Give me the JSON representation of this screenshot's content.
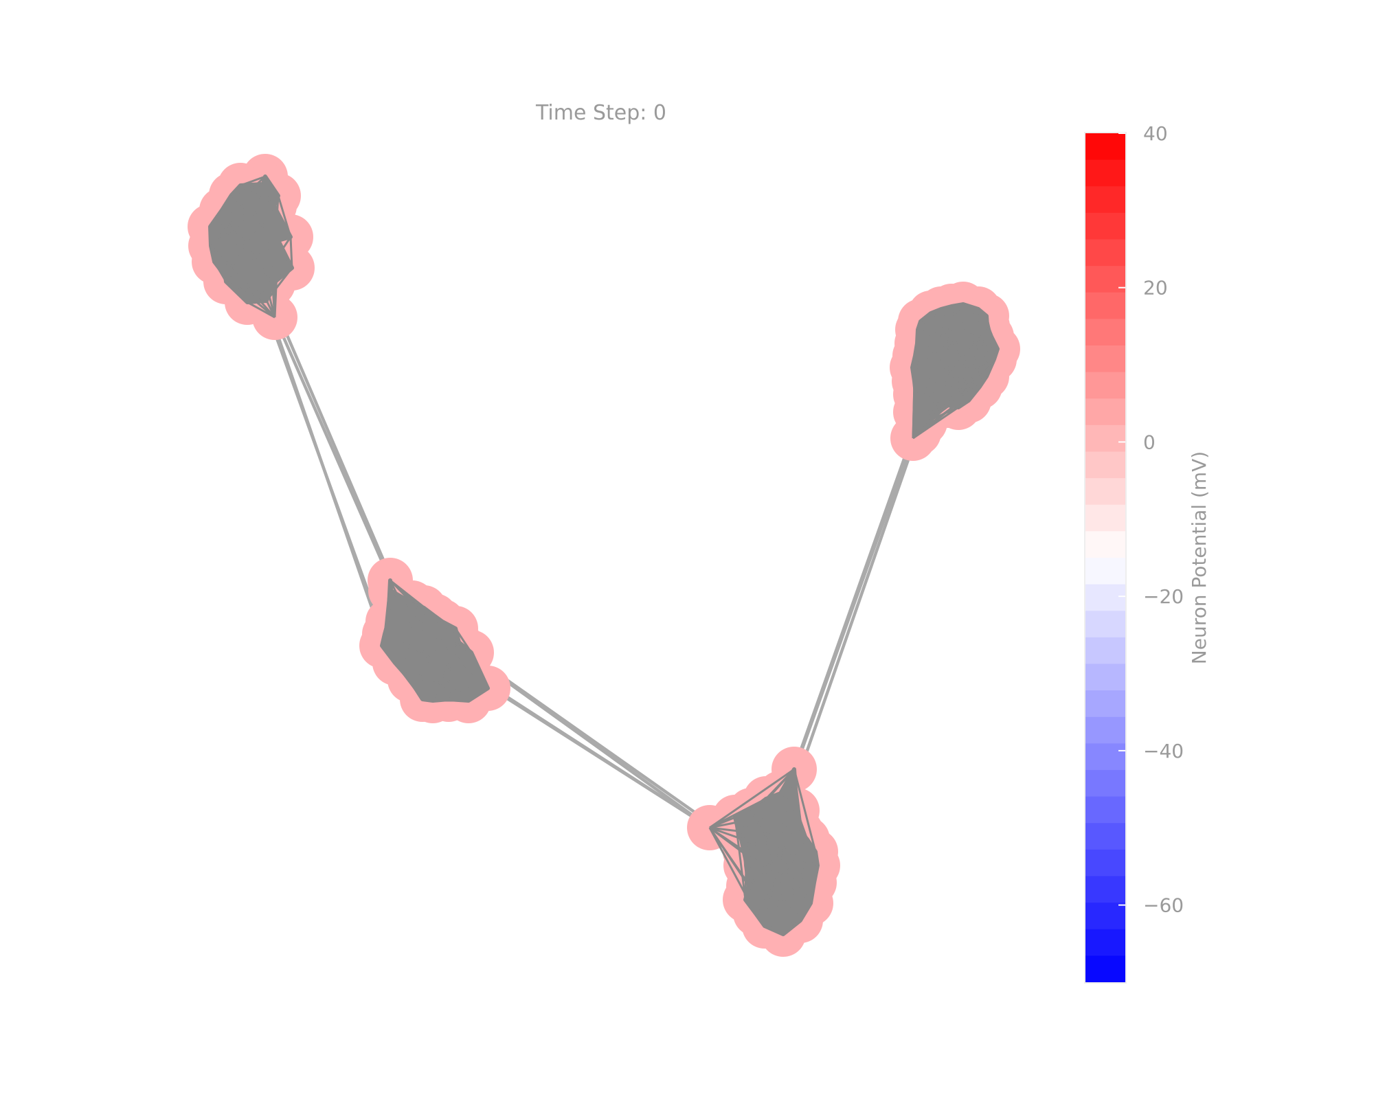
{
  "title": "Time Step: 0",
  "colorbar": {
    "label": "Neuron Potential (mV)",
    "range": [
      -70,
      40
    ],
    "ticks": [
      {
        "value": 40,
        "label": "40"
      },
      {
        "value": 20,
        "label": "20"
      },
      {
        "value": 0,
        "label": "0"
      },
      {
        "value": -20,
        "label": "−20"
      },
      {
        "value": -40,
        "label": "−40"
      },
      {
        "value": -60,
        "label": "−60"
      }
    ],
    "colorscale": [
      {
        "value": -70,
        "color": "#0000ff"
      },
      {
        "value": -15,
        "color": "#ffffff"
      },
      {
        "value": 40,
        "color": "#ff0000"
      }
    ],
    "segments": 32
  },
  "nodes": {
    "potential": 0,
    "color": "#ffb0b3",
    "clusters": [
      {
        "name": "cluster-top-left"
      },
      {
        "name": "cluster-middle-left"
      },
      {
        "name": "cluster-bottom"
      },
      {
        "name": "cluster-top-right"
      }
    ]
  },
  "edges": {
    "color": "#888888",
    "bridge_color": "#aaaaaa"
  }
}
